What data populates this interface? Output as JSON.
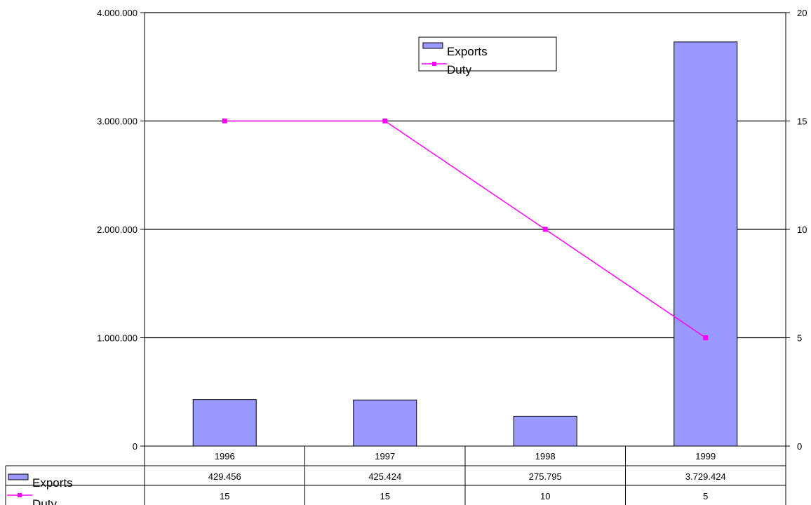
{
  "chart_data": {
    "type": "bar",
    "categories": [
      "1996",
      "1997",
      "1998",
      "1999"
    ],
    "series": [
      {
        "name": "Exports",
        "type": "bar",
        "axis": "left",
        "values": [
          429456,
          425424,
          275795,
          3729424
        ],
        "labels": [
          "429.456",
          "425.424",
          "275.795",
          "3.729.424"
        ],
        "color": "#9999ff"
      },
      {
        "name": "Duty",
        "type": "line",
        "axis": "right",
        "values": [
          15,
          15,
          10,
          5
        ],
        "labels": [
          "15",
          "15",
          "10",
          "5"
        ],
        "color": "#ff00ff"
      }
    ],
    "y_left": {
      "ylim": [
        0,
        4000000
      ],
      "ticks": [
        0,
        1000000,
        2000000,
        3000000,
        4000000
      ],
      "tick_labels": [
        "0",
        "1.000.000",
        "2.000.000",
        "3.000.000",
        "4.000.000"
      ]
    },
    "y_right": {
      "ylim": [
        0,
        20
      ],
      "ticks": [
        0,
        5,
        10,
        15,
        20
      ],
      "tick_labels": [
        "0",
        "5",
        "10",
        "15",
        "20"
      ]
    },
    "grid": true,
    "legend": "top-right",
    "data_table": true
  }
}
